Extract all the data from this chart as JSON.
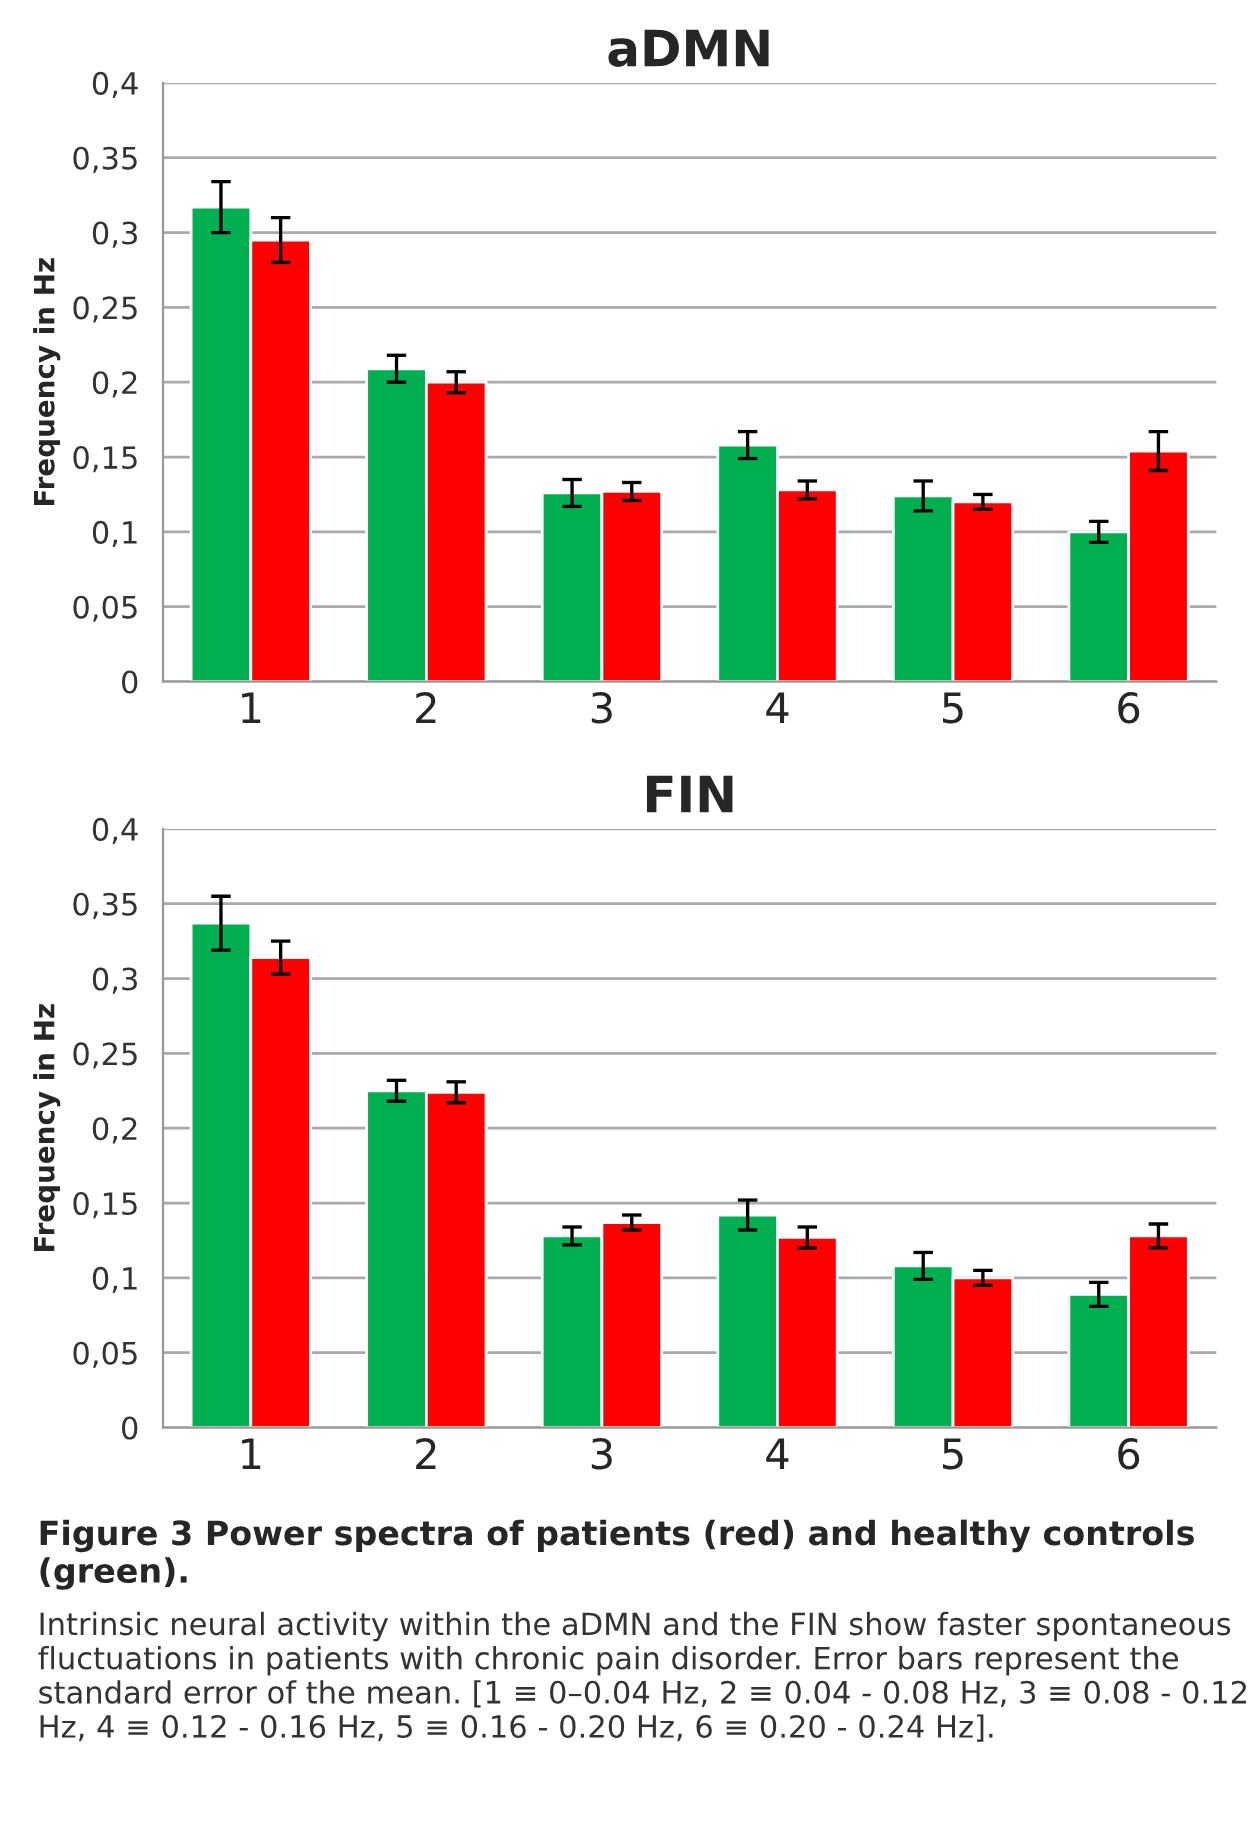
{
  "chart_data": [
    {
      "type": "bar",
      "title": "aDMN",
      "ylabel": "Frequency in Hz",
      "categories": [
        "1",
        "2",
        "3",
        "4",
        "5",
        "6"
      ],
      "series": [
        {
          "color": "#00b050",
          "values": [
            0.317,
            0.209,
            0.126,
            0.158,
            0.124,
            0.1
          ],
          "errors": [
            0.017,
            0.009,
            0.009,
            0.009,
            0.01,
            0.007
          ]
        },
        {
          "color": "#ff0000",
          "values": [
            0.295,
            0.2,
            0.127,
            0.128,
            0.12,
            0.154
          ],
          "errors": [
            0.015,
            0.007,
            0.006,
            0.006,
            0.005,
            0.013
          ]
        }
      ],
      "ylim": [
        0,
        0.4
      ],
      "yticks": [
        0,
        {
          "value": 0.05,
          "label": "0,05"
        },
        {
          "value": 0.1,
          "label": "0,1"
        },
        {
          "value": 0.15,
          "label": "0,15"
        },
        {
          "value": 0.2,
          "label": "0,2"
        },
        {
          "value": 0.25,
          "label": "0,25"
        },
        {
          "value": 0.3,
          "label": "0,3"
        },
        {
          "value": 0.35,
          "label": "0,35"
        },
        {
          "value": 0.4,
          "label": "0,4"
        }
      ],
      "grid": "y",
      "legend": false
    },
    {
      "type": "bar",
      "title": "FIN",
      "ylabel": "Frequency in Hz",
      "categories": [
        "1",
        "2",
        "3",
        "4",
        "5",
        "6"
      ],
      "series": [
        {
          "color": "#00b050",
          "values": [
            0.337,
            0.225,
            0.128,
            0.142,
            0.108,
            0.089
          ],
          "errors": [
            0.018,
            0.007,
            0.006,
            0.01,
            0.009,
            0.008
          ]
        },
        {
          "color": "#ff0000",
          "values": [
            0.314,
            0.224,
            0.137,
            0.127,
            0.1,
            0.128
          ],
          "errors": [
            0.011,
            0.007,
            0.005,
            0.007,
            0.005,
            0.008
          ]
        }
      ],
      "ylim": [
        0,
        0.4
      ],
      "yticks": [
        0,
        {
          "value": 0.05,
          "label": "0,05"
        },
        {
          "value": 0.1,
          "label": "0,1"
        },
        {
          "value": 0.15,
          "label": "0,15"
        },
        {
          "value": 0.2,
          "label": "0,2"
        },
        {
          "value": 0.25,
          "label": "0,25"
        },
        {
          "value": 0.3,
          "label": "0,3"
        },
        {
          "value": 0.35,
          "label": "0,35"
        },
        {
          "value": 0.4,
          "label": "0,4"
        }
      ],
      "grid": "y",
      "legend": false,
      "annotations": [
        "Figure 3 Power spectra of patients (red) and healthy controls (green).",
        "Intrinsic neural activity within the aDMN and the FIN show faster spontaneous fluctuations in patients with chronic pain disorder. Error bars represent the standard error of the mean. [1 ≡ 0–0.04 Hz, 2 ≡ 0.04 - 0.08 Hz, 3 ≡ 0.08 - 0.12 Hz, 4 ≡ 0.12 - 0.16 Hz, 5 ≡ 0.16 - 0.20 Hz, 6 ≡ 0.20 - 0.24 Hz]."
      ]
    }
  ]
}
